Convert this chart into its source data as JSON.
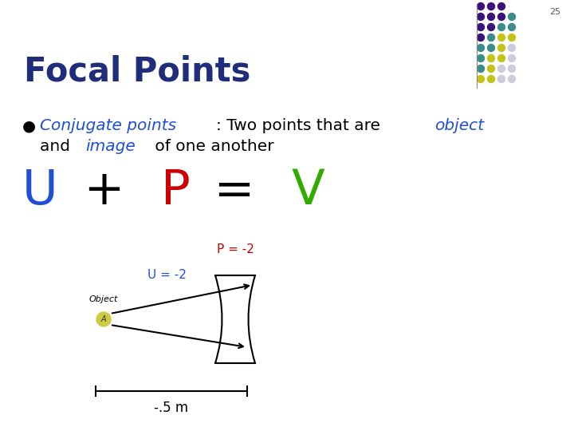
{
  "title": "Focal Points",
  "slide_number": "25",
  "background_color": "#ffffff",
  "title_color": "#1F2D7B",
  "bullet_text_parts": [
    {
      "text": "Conjugate points",
      "color": "#1F4FD7",
      "style": "italic",
      "underline": true
    },
    {
      "text": ": Two points that are ",
      "color": "#000000",
      "style": "normal"
    },
    {
      "text": "object",
      "color": "#1F4FD7",
      "style": "italic"
    },
    {
      "text": "\nand ",
      "color": "#000000",
      "style": "normal"
    },
    {
      "text": "image",
      "color": "#1F4FD7",
      "style": "italic"
    },
    {
      "text": " of one another",
      "color": "#000000",
      "style": "normal"
    }
  ],
  "formula_U": "U",
  "formula_U_color": "#1F4FD7",
  "formula_plus": " + ",
  "formula_plus_color": "#000000",
  "formula_P": "P",
  "formula_P_color": "#CC0000",
  "formula_eq": " = ",
  "formula_eq_color": "#000000",
  "formula_V": "V",
  "formula_V_color": "#33AA00",
  "label_P": "P = -2",
  "label_P_color": "#CC0000",
  "label_U": "U = -2",
  "label_U_color": "#1F4FD7",
  "label_object": "Object",
  "label_object_color": "#000000",
  "label_A": "A",
  "dot_colors": [
    [
      "#3B0F6F",
      "#3B0F6F",
      "#3B0F6F"
    ],
    [
      "#3B0F6F",
      "#3B0F6F",
      "#3B0F6F",
      "#3B8F8F"
    ],
    [
      "#3B0F6F",
      "#3B0F6F",
      "#3B8F8F",
      "#3B8F8F"
    ],
    [
      "#3B0F6F",
      "#3B8F8F",
      "#C8C820",
      "#C8C820"
    ],
    [
      "#3B8F8F",
      "#3B8F8F",
      "#C8C820",
      "#D0D0E8"
    ],
    [
      "#3B8F8F",
      "#C8C820",
      "#C8C820",
      "#D0D0E8"
    ],
    [
      "#3B8F8F",
      "#C8C820",
      "#D0D0E8",
      "#D0D0E8"
    ],
    [
      "#C8C820",
      "#C8C820",
      "#D0D0E8",
      "#D0D0E8"
    ]
  ],
  "scale_label": "-.5 m",
  "object_dot_color": "#CCCC44"
}
